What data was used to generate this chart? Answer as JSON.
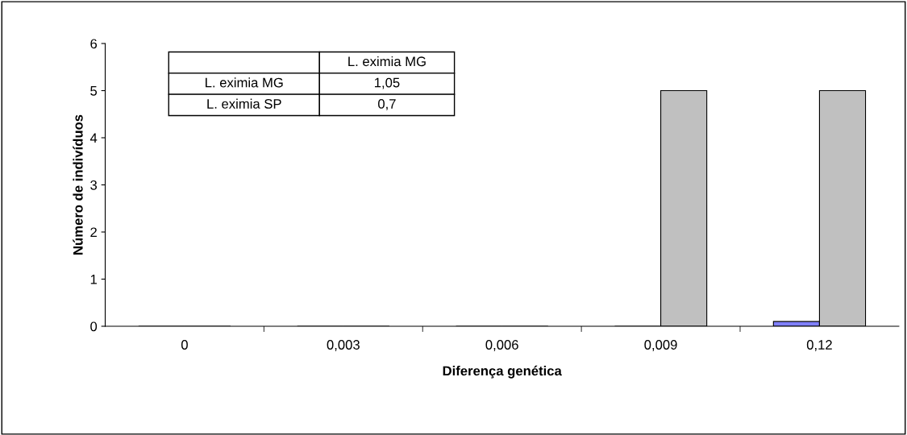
{
  "chart_data": {
    "type": "bar",
    "xlabel": "Diferença genética",
    "ylabel": "Número de indivíduos",
    "categories": [
      "0",
      "0,003",
      "0,006",
      "0,009",
      "0,12"
    ],
    "series": [
      {
        "color": "#8080ff",
        "values": [
          0,
          0,
          0,
          0,
          0.1
        ]
      },
      {
        "color": "#c0c0c0",
        "values": [
          0,
          0,
          0,
          5,
          5
        ]
      }
    ],
    "ylim": [
      0,
      6
    ],
    "yticks": [
      0,
      1,
      2,
      3,
      4,
      5,
      6
    ],
    "grid": false,
    "legend": false,
    "annotations": [
      "L. eximia MG",
      "L. eximia MG",
      "1,05",
      "L. eximia SP",
      "0,7"
    ]
  }
}
